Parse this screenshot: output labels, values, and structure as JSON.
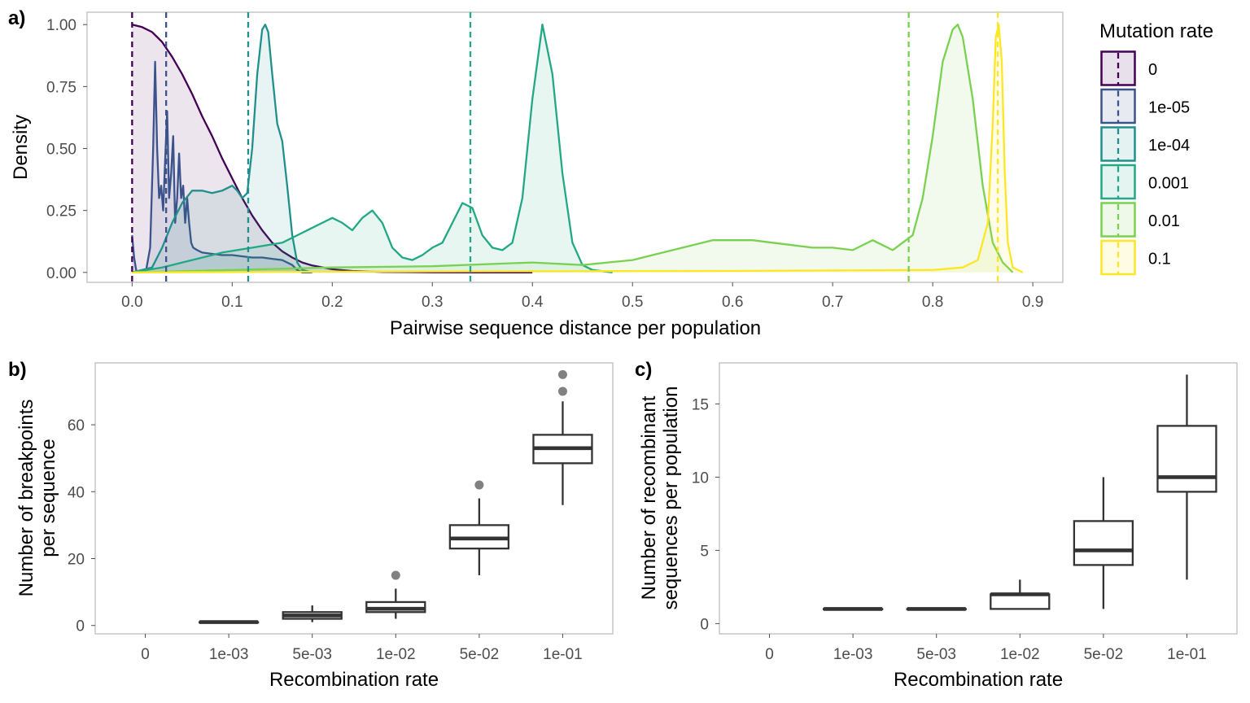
{
  "colors": {
    "0": "#440154",
    "1e-05": "#3b528b",
    "1e-04": "#21908c",
    "0.001": "#22a884",
    "0.01": "#7ad151",
    "0.1": "#fde725",
    "box": "#333333",
    "outlier": "#6b6b6b"
  },
  "chart_data": [
    {
      "panel": "a)",
      "type": "area",
      "xlabel": "Pairwise sequence distance per population",
      "ylabel": "Density",
      "xlim": [
        -0.045,
        0.93
      ],
      "ylim": [
        -0.04,
        1.05
      ],
      "xticks": [
        0.0,
        0.1,
        0.2,
        0.3,
        0.4,
        0.5,
        0.6,
        0.7,
        0.8,
        0.9
      ],
      "xtick_labels": [
        "0.0",
        "0.1",
        "0.2",
        "0.3",
        "0.4",
        "0.5",
        "0.6",
        "0.7",
        "0.8",
        "0.9"
      ],
      "yticks": [
        0,
        0.25,
        0.5,
        0.75,
        1.0
      ],
      "ytick_labels": [
        "0.00",
        "0.25",
        "0.50",
        "0.75",
        "1.00"
      ],
      "legend": {
        "title": "Mutation rate",
        "position": "right",
        "entries": [
          "0",
          "1e-05",
          "1e-04",
          "0.001",
          "0.01",
          "0.1"
        ]
      },
      "series": [
        {
          "name": "0",
          "mean": 0.0,
          "x": [
            0,
            0.01,
            0.02,
            0.03,
            0.04,
            0.05,
            0.06,
            0.07,
            0.08,
            0.09,
            0.1,
            0.11,
            0.12,
            0.13,
            0.14,
            0.15,
            0.16,
            0.17,
            0.18,
            0.2,
            0.22,
            0.25,
            0.3,
            0.35,
            0.4
          ],
          "y": [
            1.0,
            0.99,
            0.97,
            0.93,
            0.87,
            0.8,
            0.72,
            0.63,
            0.55,
            0.46,
            0.38,
            0.3,
            0.23,
            0.17,
            0.12,
            0.085,
            0.06,
            0.04,
            0.028,
            0.013,
            0.006,
            0.002,
            0.0005,
            0.0001,
            0.0
          ]
        },
        {
          "name": "1e-05",
          "mean": 0.034,
          "x": [
            0,
            0.002,
            0.004,
            0.006,
            0.01,
            0.014,
            0.018,
            0.021,
            0.023,
            0.025,
            0.027,
            0.029,
            0.031,
            0.033,
            0.035,
            0.037,
            0.039,
            0.041,
            0.043,
            0.045,
            0.047,
            0.049,
            0.051,
            0.053,
            0.055,
            0.057,
            0.059,
            0.061,
            0.065,
            0.07,
            0.08,
            0.09,
            0.1,
            0.11,
            0.12,
            0.13,
            0.14,
            0.15,
            0.16,
            0.165,
            0.17,
            0.18
          ],
          "y": [
            0.15,
            0.06,
            0.01,
            0.0,
            0.0,
            0.01,
            0.1,
            0.5,
            0.85,
            0.5,
            0.3,
            0.35,
            0.25,
            0.45,
            0.65,
            0.3,
            0.4,
            0.55,
            0.2,
            0.3,
            0.48,
            0.3,
            0.35,
            0.2,
            0.3,
            0.2,
            0.12,
            0.1,
            0.09,
            0.08,
            0.075,
            0.07,
            0.07,
            0.065,
            0.06,
            0.06,
            0.055,
            0.05,
            0.03,
            0.01,
            0.0,
            0.0
          ]
        },
        {
          "name": "1e-04",
          "mean": 0.116,
          "x": [
            0,
            0.02,
            0.03,
            0.04,
            0.05,
            0.06,
            0.07,
            0.08,
            0.09,
            0.1,
            0.105,
            0.11,
            0.115,
            0.12,
            0.125,
            0.13,
            0.133,
            0.136,
            0.14,
            0.145,
            0.15,
            0.155,
            0.16,
            0.165,
            0.17,
            0.18
          ],
          "y": [
            0.0,
            0.02,
            0.1,
            0.2,
            0.28,
            0.33,
            0.33,
            0.32,
            0.33,
            0.35,
            0.33,
            0.3,
            0.32,
            0.5,
            0.8,
            0.98,
            1.0,
            0.97,
            0.8,
            0.6,
            0.53,
            0.35,
            0.15,
            0.04,
            0.01,
            0.0
          ]
        },
        {
          "name": "0.001",
          "mean": 0.338,
          "x": [
            0,
            0.03,
            0.06,
            0.09,
            0.12,
            0.15,
            0.17,
            0.19,
            0.2,
            0.21,
            0.22,
            0.23,
            0.24,
            0.25,
            0.26,
            0.27,
            0.28,
            0.29,
            0.3,
            0.31,
            0.32,
            0.33,
            0.34,
            0.35,
            0.36,
            0.37,
            0.38,
            0.39,
            0.4,
            0.41,
            0.42,
            0.43,
            0.44,
            0.45,
            0.46,
            0.48
          ],
          "y": [
            0.0,
            0.02,
            0.05,
            0.08,
            0.1,
            0.12,
            0.16,
            0.2,
            0.22,
            0.2,
            0.17,
            0.22,
            0.25,
            0.2,
            0.1,
            0.06,
            0.05,
            0.07,
            0.1,
            0.12,
            0.2,
            0.28,
            0.26,
            0.15,
            0.1,
            0.09,
            0.12,
            0.3,
            0.7,
            1.0,
            0.8,
            0.4,
            0.12,
            0.03,
            0.01,
            0.0
          ]
        },
        {
          "name": "0.01",
          "mean": 0.776,
          "x": [
            0,
            0.1,
            0.2,
            0.3,
            0.4,
            0.45,
            0.5,
            0.52,
            0.55,
            0.58,
            0.6,
            0.62,
            0.64,
            0.66,
            0.68,
            0.7,
            0.72,
            0.74,
            0.76,
            0.78,
            0.79,
            0.8,
            0.81,
            0.82,
            0.825,
            0.83,
            0.84,
            0.85,
            0.86,
            0.87,
            0.88
          ],
          "y": [
            0.0,
            0.01,
            0.02,
            0.025,
            0.04,
            0.03,
            0.05,
            0.07,
            0.1,
            0.13,
            0.13,
            0.13,
            0.12,
            0.11,
            0.1,
            0.1,
            0.09,
            0.13,
            0.09,
            0.15,
            0.3,
            0.55,
            0.85,
            0.98,
            1.0,
            0.95,
            0.7,
            0.35,
            0.12,
            0.04,
            0.0
          ]
        },
        {
          "name": "0.1",
          "mean": 0.865,
          "x": [
            0,
            0.2,
            0.4,
            0.6,
            0.8,
            0.83,
            0.845,
            0.855,
            0.86,
            0.863,
            0.866,
            0.869,
            0.872,
            0.875,
            0.88,
            0.89
          ],
          "y": [
            0.0,
            0.003,
            0.005,
            0.006,
            0.01,
            0.02,
            0.05,
            0.2,
            0.6,
            0.95,
            1.0,
            0.85,
            0.4,
            0.12,
            0.02,
            0.0
          ]
        }
      ]
    },
    {
      "panel": "b)",
      "type": "box",
      "xlabel": "Recombination rate",
      "ylabel_lines": [
        "Number of breakpoints",
        "per sequence"
      ],
      "categories": [
        "0",
        "1e-03",
        "5e-03",
        "1e-02",
        "5e-02",
        "1e-01"
      ],
      "ylim": [
        -2.5,
        78.5
      ],
      "yticks": [
        0,
        20,
        40,
        60
      ],
      "ytick_labels": [
        "0",
        "20",
        "40",
        "60"
      ],
      "boxes": [
        null,
        {
          "q1": 1,
          "median": 1,
          "q3": 1,
          "whisker_low": 1,
          "whisker_high": 1,
          "outliers": []
        },
        {
          "q1": 2,
          "median": 3,
          "q3": 4,
          "whisker_low": 1,
          "whisker_high": 6,
          "outliers": []
        },
        {
          "q1": 4,
          "median": 5,
          "q3": 7,
          "whisker_low": 2,
          "whisker_high": 11,
          "outliers": [
            15
          ]
        },
        {
          "q1": 23,
          "median": 26,
          "q3": 30,
          "whisker_low": 15,
          "whisker_high": 38,
          "outliers": [
            42
          ]
        },
        {
          "q1": 48.5,
          "median": 53,
          "q3": 57,
          "whisker_low": 36,
          "whisker_high": 67,
          "outliers": [
            70,
            75
          ]
        }
      ]
    },
    {
      "panel": "c)",
      "type": "box",
      "xlabel": "Recombination rate",
      "ylabel_lines": [
        "Number of recombinant",
        "sequences per population"
      ],
      "categories": [
        "0",
        "1e-03",
        "5e-03",
        "1e-02",
        "5e-02",
        "1e-01"
      ],
      "ylim": [
        -0.7,
        17.8
      ],
      "yticks": [
        0,
        5,
        10,
        15
      ],
      "ytick_labels": [
        "0",
        "5",
        "10",
        "15"
      ],
      "boxes": [
        null,
        {
          "q1": 1,
          "median": 1,
          "q3": 1,
          "whisker_low": 1,
          "whisker_high": 1,
          "outliers": []
        },
        {
          "q1": 1,
          "median": 1,
          "q3": 1,
          "whisker_low": 1,
          "whisker_high": 1,
          "outliers": []
        },
        {
          "q1": 1,
          "median": 2,
          "q3": 2,
          "whisker_low": 1,
          "whisker_high": 3,
          "outliers": []
        },
        {
          "q1": 4,
          "median": 5,
          "q3": 7,
          "whisker_low": 1,
          "whisker_high": 10,
          "outliers": []
        },
        {
          "q1": 9,
          "median": 10,
          "q3": 13.5,
          "whisker_low": 3,
          "whisker_high": 17,
          "outliers": []
        }
      ]
    }
  ]
}
